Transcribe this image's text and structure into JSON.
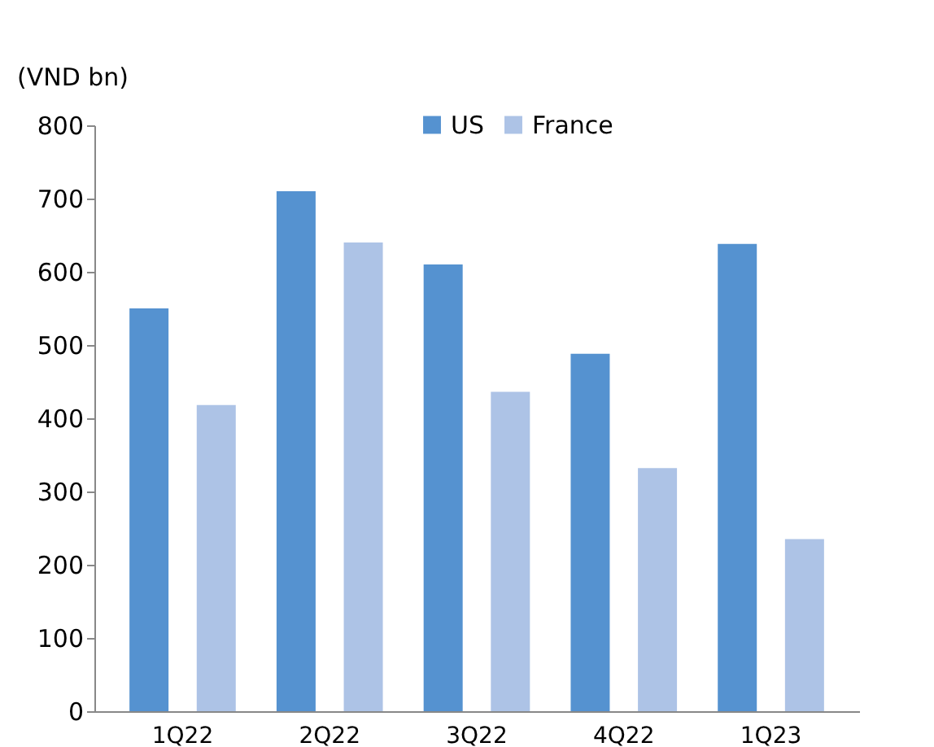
{
  "chart_data": {
    "type": "bar",
    "ylabel": "(VND bn)",
    "categories": [
      "1Q22",
      "2Q22",
      "3Q22",
      "4Q22",
      "1Q23"
    ],
    "series": [
      {
        "name": "US",
        "color": "#5592d0",
        "values": [
          550,
          710,
          610,
          488,
          638
        ]
      },
      {
        "name": "France",
        "color": "#adc3e6",
        "values": [
          418,
          640,
          436,
          332,
          235
        ]
      }
    ],
    "ylim": [
      0,
      800
    ],
    "yticks": [
      0,
      100,
      200,
      300,
      400,
      500,
      600,
      700,
      800
    ],
    "grid": false,
    "legend": "top"
  }
}
